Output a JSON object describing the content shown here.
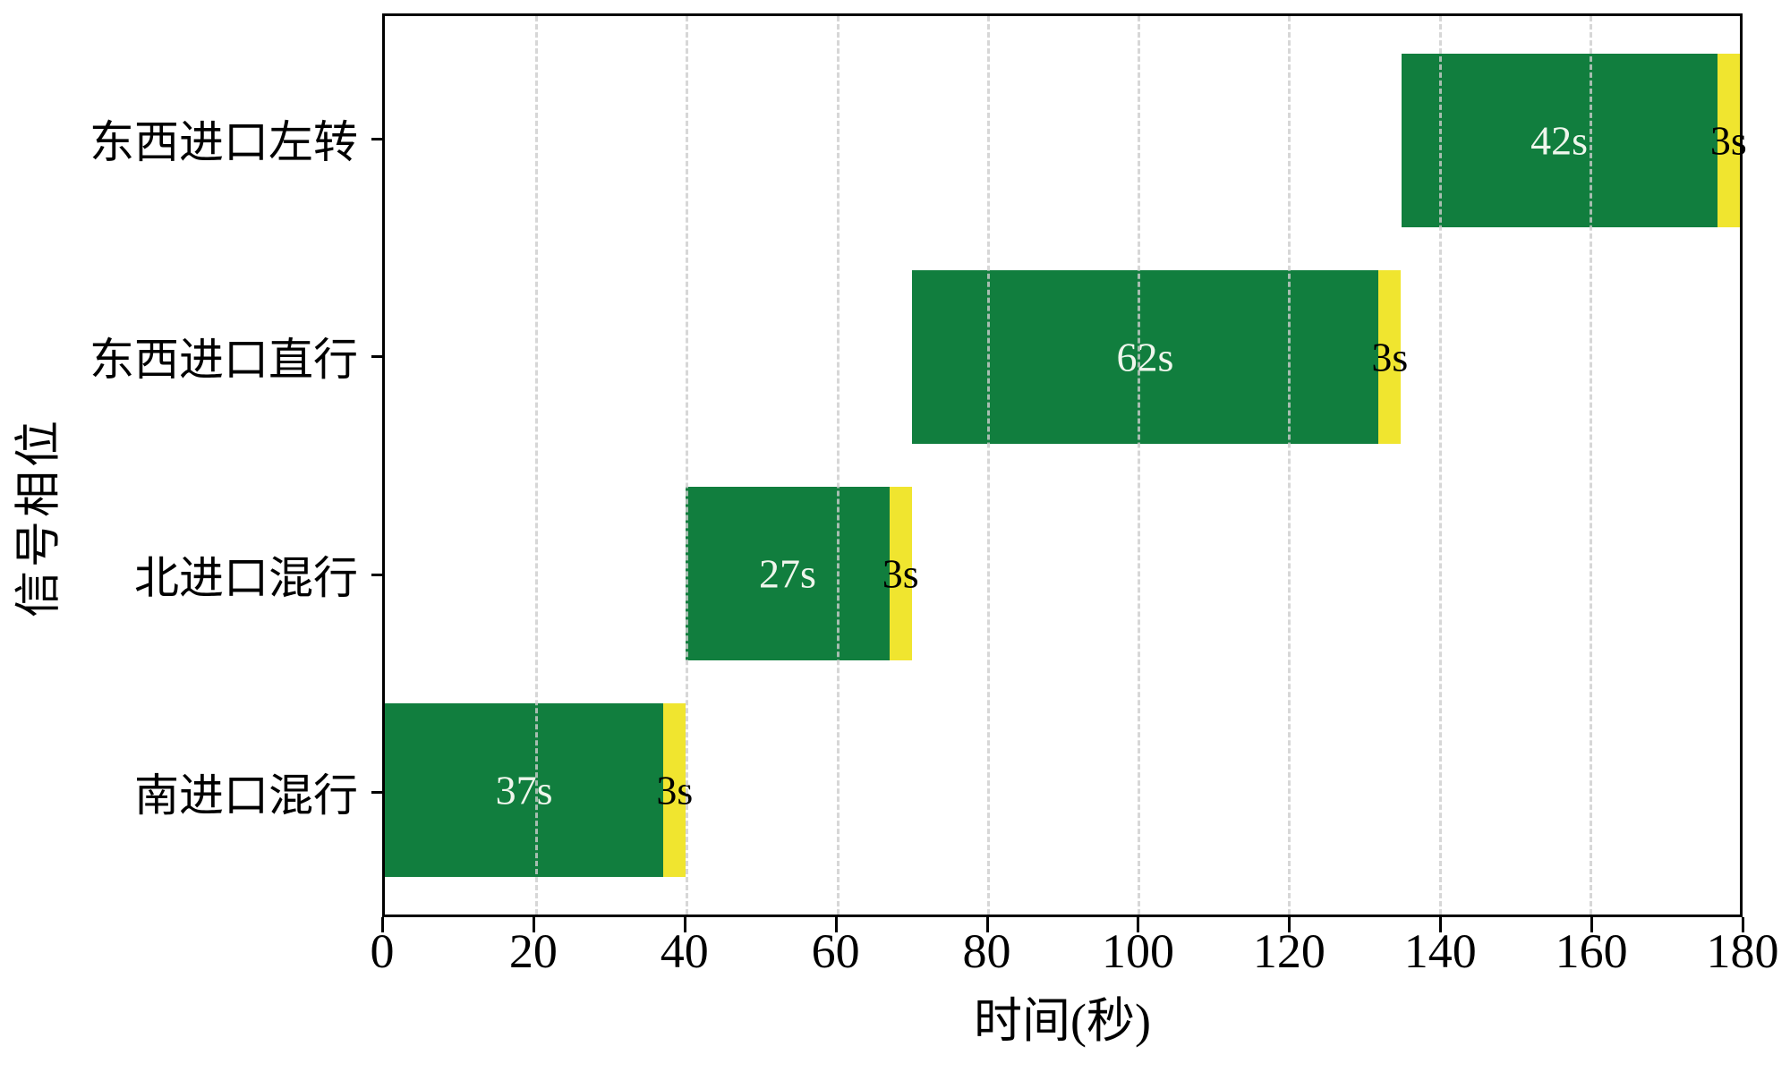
{
  "chart_data": {
    "type": "bar",
    "orientation": "horizontal",
    "title": "",
    "xlabel": "时间(秒)",
    "ylabel": "信号相位",
    "xlim": [
      0,
      180
    ],
    "xticks": [
      0,
      20,
      40,
      60,
      80,
      100,
      120,
      140,
      160,
      180
    ],
    "grid": {
      "axis": "x",
      "style": "dashed",
      "color": "#cdcdcd"
    },
    "legend": "none",
    "categories_top_to_bottom": [
      "东西进口左转",
      "东西进口直行",
      "北进口混行",
      "南进口混行"
    ],
    "colors": {
      "green_phase": "#117E3E",
      "yellow_phase": "#F0E52F",
      "green_label_text": "#EFF6EC",
      "yellow_label_text": "#000000",
      "spine": "#000000"
    },
    "phases": [
      {
        "category": "东西进口左转",
        "green_start": 135,
        "green_duration": 42,
        "green_label": "42s",
        "yellow_start": 177,
        "yellow_duration": 3,
        "yellow_label": "3s"
      },
      {
        "category": "东西进口直行",
        "green_start": 70,
        "green_duration": 62,
        "green_label": "62s",
        "yellow_start": 132,
        "yellow_duration": 3,
        "yellow_label": "3s"
      },
      {
        "category": "北进口混行",
        "green_start": 40,
        "green_duration": 27,
        "green_label": "27s",
        "yellow_start": 67,
        "yellow_duration": 3,
        "yellow_label": "3s"
      },
      {
        "category": "南进口混行",
        "green_start": 0,
        "green_duration": 37,
        "green_label": "37s",
        "yellow_start": 37,
        "yellow_duration": 3,
        "yellow_label": "3s"
      }
    ]
  }
}
